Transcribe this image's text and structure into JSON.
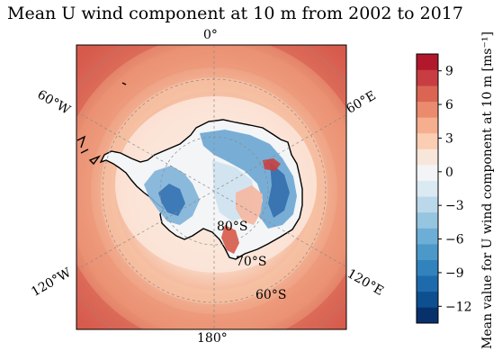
{
  "figure": {
    "title": "Mean U wind component at 10 m from 2002 to 2017"
  },
  "map": {
    "projection": "south-polar-stereographic",
    "longitude_labels": {
      "top": "0°",
      "upper_left": "60°W",
      "upper_right": "60°E",
      "lower_left": "120°W",
      "lower_right": "120°E",
      "bottom": "180°"
    },
    "latitude_labels": [
      "80°S",
      "70°S",
      "60°S"
    ],
    "gridlines": "dashed-gray"
  },
  "colorbar": {
    "label": "Mean value for U wind component at 10 m [ms⁻¹]",
    "ticks": [
      "9",
      "6",
      "3",
      "0",
      "−3",
      "−6",
      "−9",
      "−12"
    ],
    "tick_values": [
      9,
      6,
      3,
      0,
      -3,
      -6,
      -9,
      -12
    ],
    "range": [
      -13.5,
      10.5
    ],
    "colors": [
      "#08306b",
      "#0e4f8f",
      "#1e6aad",
      "#3282bd",
      "#4b98c9",
      "#6daed6",
      "#95c5df",
      "#bbd8ea",
      "#dbe9f3",
      "#f2f4f6",
      "#f9e6da",
      "#fbcdb3",
      "#f5ae8e",
      "#ea8b6e",
      "#da6553",
      "#c73d42",
      "#b2182b"
    ]
  },
  "colors": {
    "ocean_far": "#d4584a",
    "ocean_mid": "#eb8f72",
    "ocean_near": "#f7c2a4",
    "ice_edge": "#fbe2d2",
    "interior": "#f5f0ee",
    "blue_strong": "#2f6fb0",
    "blue_mid": "#7fb3d8",
    "blue_light": "#cfe2f0"
  }
}
